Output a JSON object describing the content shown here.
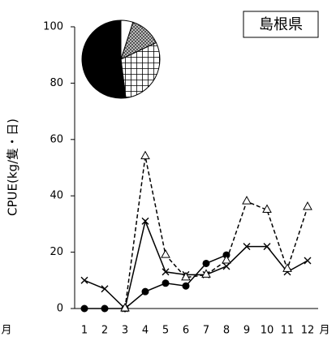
{
  "chart_data": [
    {
      "type": "line",
      "title": "島根県",
      "y_label": "CPUE(kg/隻・日)",
      "x_label": "月",
      "side_label": "月",
      "categories": [
        "1",
        "2",
        "3",
        "4",
        "5",
        "6",
        "7",
        "8",
        "9",
        "10",
        "11",
        "12"
      ],
      "ylim": [
        0,
        100
      ],
      "yticks": [
        0,
        20,
        40,
        60,
        80,
        100
      ],
      "series": [
        {
          "color": "#000000",
          "marker": "circle",
          "dash": false,
          "values": [
            0,
            0,
            0,
            6,
            9,
            8,
            16,
            19,
            null,
            null,
            null,
            null
          ]
        },
        {
          "color": "#000000",
          "marker": "cross",
          "dash": false,
          "values": [
            10,
            7,
            0,
            31,
            13,
            12,
            12,
            15,
            22,
            22,
            13,
            17
          ]
        },
        {
          "color": "#000000",
          "marker": "triangle",
          "dash": true,
          "values": [
            null,
            null,
            0,
            54,
            19,
            11,
            12,
            17,
            38,
            35,
            14,
            36
          ]
        }
      ]
    },
    {
      "type": "pie",
      "values": [
        5,
        13,
        30,
        52
      ],
      "fills": [
        "white",
        "checker",
        "grid",
        "black"
      ]
    }
  ]
}
